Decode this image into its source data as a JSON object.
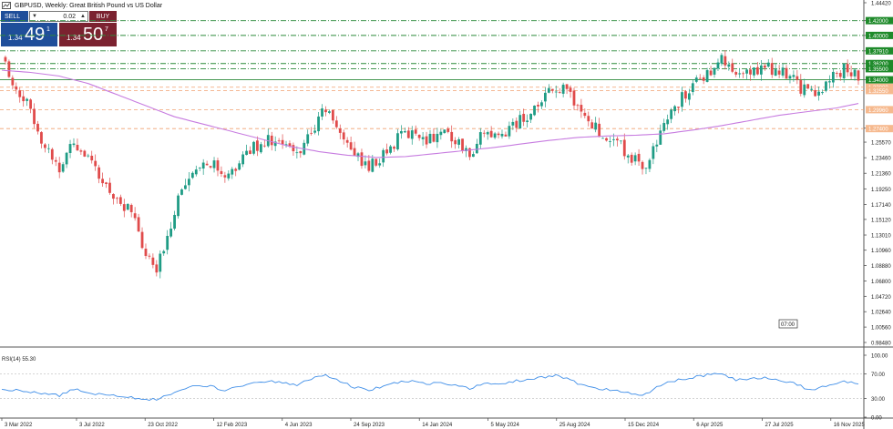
{
  "header": {
    "title": "GBPUSD, Weekly:  Great British Pound vs US Dollar",
    "icon": "chart-icon"
  },
  "trade_panel": {
    "sell_label": "SELL",
    "buy_label": "BUY",
    "quantity": "0.02",
    "sell_price_small": "1.34",
    "sell_price_big": "49",
    "sell_price_sup": "1",
    "buy_price_small": "1.34",
    "buy_price_big": "50",
    "buy_price_sup": "7",
    "colors": {
      "sell": "#1f4e9a",
      "buy": "#7b2230"
    }
  },
  "chart_data": [
    {
      "type": "candlestick",
      "symbol": "GBPUSD",
      "timeframe": "Weekly",
      "y_ticks": [
        "1.44420",
        "1.42000",
        "1.40000",
        "1.37910",
        "1.36200",
        "1.35500",
        "1.34000",
        "1.27460",
        "1.25570",
        "1.23460",
        "1.21360",
        "1.19250",
        "1.17140",
        "1.15120",
        "1.13010",
        "1.10960",
        "1.08880",
        "1.06800",
        "1.04720",
        "1.02640",
        "1.00560",
        "0.98480"
      ],
      "ylim": [
        0.9848,
        1.4442
      ],
      "x_ticks": [
        "3 Mar 2022",
        "3 Jul 2022",
        "23 Oct 2022",
        "12 Feb 2023",
        "4 Jun 2023",
        "24 Sep 2023",
        "14 Jan 2024",
        "5 May 2024",
        "25 Aug 2024",
        "15 Dec 2024",
        "6 Apr 2025",
        "27 Jul 2025",
        "16 Nov 2025"
      ],
      "x_range": [
        "2022-03-03",
        "2025-12-31"
      ],
      "time_label": "07:00",
      "ma_color": "#c77ce0",
      "bull_color": "#1f9c85",
      "bear_color": "#e04b4b",
      "green_levels": [
        {
          "value": 1.42,
          "label": "1.42000",
          "dashed": true
        },
        {
          "value": 1.4,
          "label": "1.40000",
          "dashed": true
        },
        {
          "value": 1.3791,
          "label": "1.37910",
          "dashed": true
        },
        {
          "value": 1.362,
          "label": "1.36200",
          "dashed": true
        },
        {
          "value": 1.355,
          "label": "1.35500",
          "dashed": true
        },
        {
          "value": 1.34,
          "label": "1.34000",
          "dashed": false
        }
      ],
      "orange_levels": [
        {
          "value": 1.33,
          "label": "1.33000"
        },
        {
          "value": 1.3255,
          "label": "1.32550"
        },
        {
          "value": 1.2996,
          "label": "1.29960"
        },
        {
          "value": 1.274,
          "label": "1.27400"
        }
      ],
      "close_keypoints": [
        [
          0,
          1.37
        ],
        [
          4,
          1.33
        ],
        [
          8,
          1.3
        ],
        [
          12,
          1.25
        ],
        [
          16,
          1.22
        ],
        [
          20,
          1.26
        ],
        [
          24,
          1.23
        ],
        [
          28,
          1.2
        ],
        [
          32,
          1.18
        ],
        [
          36,
          1.16
        ],
        [
          40,
          1.1
        ],
        [
          43,
          1.08
        ],
        [
          46,
          1.13
        ],
        [
          50,
          1.2
        ],
        [
          54,
          1.21
        ],
        [
          58,
          1.23
        ],
        [
          62,
          1.2
        ],
        [
          66,
          1.23
        ],
        [
          70,
          1.25
        ],
        [
          74,
          1.26
        ],
        [
          78,
          1.25
        ],
        [
          82,
          1.24
        ],
        [
          86,
          1.27
        ],
        [
          90,
          1.3
        ],
        [
          94,
          1.27
        ],
        [
          98,
          1.24
        ],
        [
          102,
          1.22
        ],
        [
          106,
          1.24
        ],
        [
          110,
          1.26
        ],
        [
          114,
          1.27
        ],
        [
          118,
          1.26
        ],
        [
          122,
          1.27
        ],
        [
          126,
          1.26
        ],
        [
          130,
          1.24
        ],
        [
          134,
          1.27
        ],
        [
          138,
          1.26
        ],
        [
          142,
          1.28
        ],
        [
          146,
          1.29
        ],
        [
          150,
          1.31
        ],
        [
          154,
          1.33
        ],
        [
          158,
          1.32
        ],
        [
          162,
          1.29
        ],
        [
          166,
          1.27
        ],
        [
          170,
          1.26
        ],
        [
          174,
          1.24
        ],
        [
          178,
          1.22
        ],
        [
          182,
          1.25
        ],
        [
          186,
          1.3
        ],
        [
          190,
          1.32
        ],
        [
          194,
          1.34
        ],
        [
          198,
          1.36
        ],
        [
          200,
          1.37
        ],
        [
          204,
          1.34
        ],
        [
          208,
          1.35
        ],
        [
          212,
          1.36
        ],
        [
          216,
          1.35
        ],
        [
          220,
          1.34
        ],
        [
          224,
          1.32
        ],
        [
          226,
          1.32
        ],
        [
          230,
          1.34
        ],
        [
          234,
          1.355
        ],
        [
          237,
          1.345
        ],
        [
          238,
          1.344
        ]
      ],
      "ma_keypoints": [
        [
          0,
          1.353
        ],
        [
          8,
          1.35
        ],
        [
          16,
          1.345
        ],
        [
          24,
          1.335
        ],
        [
          32,
          1.32
        ],
        [
          40,
          1.305
        ],
        [
          48,
          1.29
        ],
        [
          56,
          1.28
        ],
        [
          64,
          1.27
        ],
        [
          72,
          1.26
        ],
        [
          80,
          1.25
        ],
        [
          88,
          1.243
        ],
        [
          96,
          1.238
        ],
        [
          104,
          1.235
        ],
        [
          112,
          1.236
        ],
        [
          120,
          1.24
        ],
        [
          128,
          1.244
        ],
        [
          136,
          1.248
        ],
        [
          144,
          1.253
        ],
        [
          152,
          1.258
        ],
        [
          160,
          1.262
        ],
        [
          168,
          1.264
        ],
        [
          176,
          1.265
        ],
        [
          184,
          1.267
        ],
        [
          192,
          1.272
        ],
        [
          200,
          1.278
        ],
        [
          208,
          1.285
        ],
        [
          216,
          1.292
        ],
        [
          224,
          1.297
        ],
        [
          232,
          1.302
        ],
        [
          238,
          1.308
        ]
      ]
    },
    {
      "type": "line",
      "title": "RSI(14) 55.30",
      "y_ticks": [
        "100.00",
        "70.00",
        "30.00",
        "0.00"
      ],
      "ylim": [
        0,
        100
      ],
      "levels": [
        70,
        30
      ],
      "line_color": "#3f8ee8",
      "rsi_keypoints": [
        [
          0,
          45
        ],
        [
          6,
          42
        ],
        [
          12,
          38
        ],
        [
          16,
          35
        ],
        [
          20,
          45
        ],
        [
          26,
          38
        ],
        [
          32,
          35
        ],
        [
          38,
          30
        ],
        [
          43,
          28
        ],
        [
          48,
          40
        ],
        [
          54,
          52
        ],
        [
          58,
          50
        ],
        [
          62,
          42
        ],
        [
          66,
          50
        ],
        [
          70,
          56
        ],
        [
          74,
          58
        ],
        [
          78,
          55
        ],
        [
          82,
          52
        ],
        [
          86,
          62
        ],
        [
          90,
          68
        ],
        [
          94,
          58
        ],
        [
          98,
          48
        ],
        [
          102,
          44
        ],
        [
          106,
          50
        ],
        [
          110,
          56
        ],
        [
          114,
          58
        ],
        [
          118,
          54
        ],
        [
          122,
          55
        ],
        [
          126,
          53
        ],
        [
          130,
          45
        ],
        [
          134,
          55
        ],
        [
          138,
          52
        ],
        [
          142,
          58
        ],
        [
          146,
          60
        ],
        [
          150,
          64
        ],
        [
          154,
          68
        ],
        [
          158,
          60
        ],
        [
          162,
          50
        ],
        [
          166,
          45
        ],
        [
          170,
          44
        ],
        [
          174,
          40
        ],
        [
          178,
          35
        ],
        [
          182,
          48
        ],
        [
          186,
          58
        ],
        [
          190,
          62
        ],
        [
          194,
          66
        ],
        [
          198,
          70
        ],
        [
          200,
          71
        ],
        [
          204,
          60
        ],
        [
          208,
          62
        ],
        [
          212,
          63
        ],
        [
          216,
          60
        ],
        [
          220,
          55
        ],
        [
          224,
          45
        ],
        [
          226,
          45
        ],
        [
          230,
          52
        ],
        [
          234,
          58
        ],
        [
          237,
          55
        ],
        [
          238,
          55
        ]
      ]
    }
  ]
}
